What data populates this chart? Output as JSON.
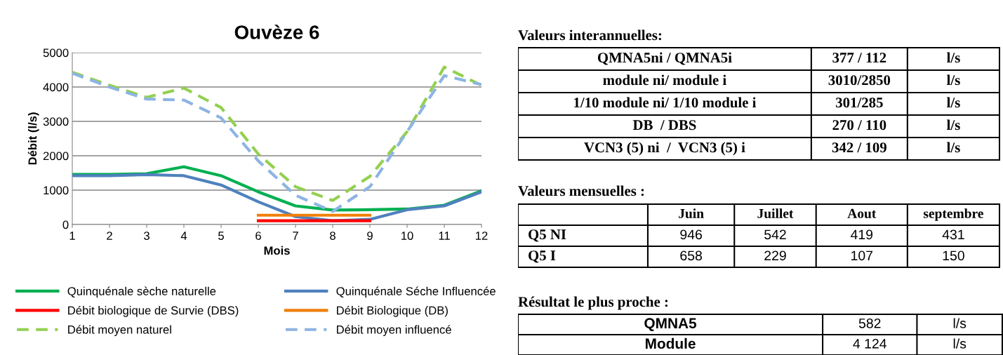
{
  "chart_data": [
    {
      "type": "line",
      "title": "Ouvèze 6",
      "xlabel": "Mois",
      "ylabel": "Débit (l/s)",
      "x": [
        1,
        2,
        3,
        4,
        5,
        6,
        7,
        8,
        9,
        10,
        11,
        12
      ],
      "xlim": [
        1,
        12
      ],
      "xticks": [
        1,
        2,
        3,
        4,
        5,
        6,
        7,
        8,
        9,
        10,
        11,
        12
      ],
      "ylim": [
        0,
        5000
      ],
      "yticks": [
        0,
        1000,
        2000,
        3000,
        4000,
        5000
      ],
      "grid": "y",
      "legend": "bottom",
      "series": [
        {
          "name": "Quinquénale sèche naturelle",
          "color": "#00b050",
          "line_style": "solid",
          "values": [
            1460,
            1460,
            1480,
            1680,
            1420,
            950,
            540,
            420,
            430,
            450,
            560,
            980
          ]
        },
        {
          "name": "Quinquénale Séche Influencée",
          "color": "#4f81bd",
          "line_style": "solid",
          "values": [
            1420,
            1420,
            1450,
            1420,
            1150,
            660,
            230,
            110,
            150,
            430,
            540,
            950
          ]
        },
        {
          "name": "Débit biologique de Survie (DBS)",
          "color": "#ff0000",
          "line_style": "solid",
          "values": [
            null,
            null,
            null,
            null,
            null,
            110,
            110,
            110,
            110,
            null,
            null,
            null
          ]
        },
        {
          "name": "Débit Biologique (DB)",
          "color": "#f07f09",
          "line_style": "solid",
          "values": [
            null,
            null,
            null,
            null,
            null,
            270,
            270,
            270,
            270,
            null,
            null,
            null
          ]
        },
        {
          "name": "Débit moyen naturel",
          "color": "#92d050",
          "line_style": "dashed",
          "values": [
            4430,
            4050,
            3700,
            3970,
            3400,
            2050,
            1100,
            700,
            1400,
            2700,
            4580,
            4050
          ]
        },
        {
          "name": "Débit moyen influencé",
          "color": "#8db4e2",
          "line_style": "dashed",
          "values": [
            4400,
            4000,
            3650,
            3620,
            3100,
            1850,
            850,
            380,
            1100,
            2700,
            4330,
            4070
          ]
        }
      ]
    },
    {
      "type": "other",
      "title": "Valeurs interannuelles:",
      "y_categories": [
        "QMNA5ni / QMNA5i",
        "module ni/ module i",
        "1/10 module ni/ 1/10 module i",
        "DB  / DBS",
        "VCN3 (5) ni  /  VCN3 (5) i"
      ],
      "cell_labels": [
        [
          "377 / 112",
          "l/s"
        ],
        [
          "3010/2850",
          "l/s"
        ],
        [
          "301/285",
          "l/s"
        ],
        [
          "270 / 110",
          "l/s"
        ],
        [
          "342 / 109",
          "l/s"
        ]
      ]
    },
    {
      "type": "other",
      "title": "Valeurs mensuelles :",
      "categories": [
        "Juin",
        "Juillet",
        "Aout",
        "septembre"
      ],
      "y_categories": [
        "Q5 NI",
        "Q5 I"
      ],
      "cell_labels": [
        [
          "946",
          "542",
          "419",
          "431"
        ],
        [
          "658",
          "229",
          "107",
          "150"
        ]
      ]
    },
    {
      "type": "other",
      "title": "Résultat le plus proche :",
      "y_categories": [
        "QMNA5",
        "Module"
      ],
      "cell_labels": [
        [
          "582",
          "l/s"
        ],
        [
          "4 124",
          "l/s"
        ]
      ]
    }
  ]
}
